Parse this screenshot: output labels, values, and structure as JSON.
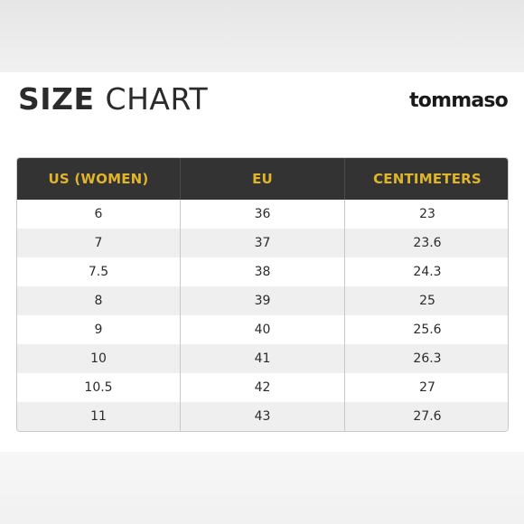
{
  "header": {
    "title_bold": "SIZE",
    "title_light": "CHART",
    "brand": "tommaso"
  },
  "table": {
    "columns": [
      "US (WOMEN)",
      "EU",
      "CENTIMETERS"
    ],
    "rows": [
      [
        "6",
        "36",
        "23"
      ],
      [
        "7",
        "37",
        "23.6"
      ],
      [
        "7.5",
        "38",
        "24.3"
      ],
      [
        "8",
        "39",
        "25"
      ],
      [
        "9",
        "40",
        "25.6"
      ],
      [
        "10",
        "41",
        "26.3"
      ],
      [
        "10.5",
        "42",
        "27"
      ],
      [
        "11",
        "43",
        "27.6"
      ]
    ]
  },
  "colors": {
    "header_bg": "#333333",
    "header_text": "#e0b52a",
    "stripe": "#efefef",
    "body_text": "#2b2b2b"
  }
}
